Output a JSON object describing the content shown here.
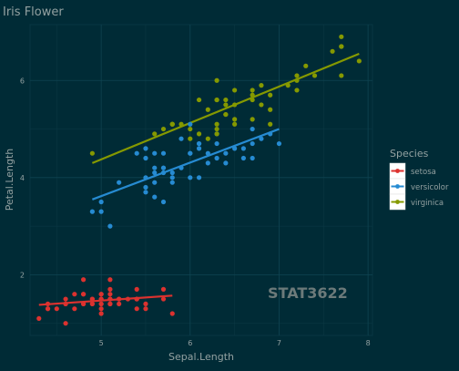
{
  "chart_data": {
    "type": "scatter",
    "title": "Iris Flower",
    "xlabel": "Sepal.Length",
    "ylabel": "Petal.Length",
    "xlim": [
      4.2,
      8.05
    ],
    "ylim": [
      0.75,
      7.15
    ],
    "x_ticks": [
      5,
      6,
      7,
      8
    ],
    "y_ticks": [
      2,
      4,
      6
    ],
    "grid": true,
    "legend": {
      "title": "Species",
      "position": "right"
    },
    "annotation": "STAT3622",
    "series": [
      {
        "name": "setosa",
        "color": "#dc322f",
        "points": [
          [
            4.3,
            1.1
          ],
          [
            4.4,
            1.3
          ],
          [
            4.4,
            1.4
          ],
          [
            4.4,
            1.3
          ],
          [
            4.5,
            1.3
          ],
          [
            4.6,
            1.4
          ],
          [
            4.6,
            1.5
          ],
          [
            4.6,
            1.0
          ],
          [
            4.6,
            1.4
          ],
          [
            4.7,
            1.3
          ],
          [
            4.7,
            1.6
          ],
          [
            4.8,
            1.6
          ],
          [
            4.8,
            1.4
          ],
          [
            4.8,
            1.9
          ],
          [
            4.8,
            1.4
          ],
          [
            4.8,
            1.6
          ],
          [
            4.9,
            1.4
          ],
          [
            4.9,
            1.5
          ],
          [
            4.9,
            1.4
          ],
          [
            4.9,
            1.5
          ],
          [
            5.0,
            1.4
          ],
          [
            5.0,
            1.5
          ],
          [
            5.0,
            1.2
          ],
          [
            5.0,
            1.3
          ],
          [
            5.0,
            1.6
          ],
          [
            5.0,
            1.4
          ],
          [
            5.0,
            1.6
          ],
          [
            5.0,
            1.5
          ],
          [
            5.1,
            1.4
          ],
          [
            5.1,
            1.5
          ],
          [
            5.1,
            1.5
          ],
          [
            5.1,
            1.7
          ],
          [
            5.1,
            1.5
          ],
          [
            5.1,
            1.9
          ],
          [
            5.1,
            1.6
          ],
          [
            5.1,
            1.4
          ],
          [
            5.2,
            1.5
          ],
          [
            5.2,
            1.4
          ],
          [
            5.2,
            1.5
          ],
          [
            5.3,
            1.5
          ],
          [
            5.4,
            1.7
          ],
          [
            5.4,
            1.5
          ],
          [
            5.4,
            1.3
          ],
          [
            5.4,
            1.5
          ],
          [
            5.4,
            1.5
          ],
          [
            5.5,
            1.3
          ],
          [
            5.5,
            1.4
          ],
          [
            5.7,
            1.5
          ],
          [
            5.7,
            1.7
          ],
          [
            5.8,
            1.2
          ]
        ],
        "fit": [
          [
            4.3,
            1.38
          ],
          [
            5.8,
            1.57
          ]
        ]
      },
      {
        "name": "versicolor",
        "color": "#268bd2",
        "points": [
          [
            4.9,
            3.3
          ],
          [
            5.0,
            3.5
          ],
          [
            5.0,
            3.3
          ],
          [
            5.1,
            3.0
          ],
          [
            5.2,
            3.9
          ],
          [
            5.4,
            4.5
          ],
          [
            5.5,
            4.0
          ],
          [
            5.5,
            4.6
          ],
          [
            5.5,
            3.8
          ],
          [
            5.5,
            3.7
          ],
          [
            5.5,
            4.4
          ],
          [
            5.6,
            3.9
          ],
          [
            5.6,
            4.5
          ],
          [
            5.6,
            4.2
          ],
          [
            5.6,
            4.1
          ],
          [
            5.6,
            3.6
          ],
          [
            5.7,
            4.5
          ],
          [
            5.7,
            3.5
          ],
          [
            5.7,
            4.2
          ],
          [
            5.7,
            4.2
          ],
          [
            5.7,
            4.1
          ],
          [
            5.8,
            4.1
          ],
          [
            5.8,
            4.0
          ],
          [
            5.8,
            3.9
          ],
          [
            5.9,
            4.2
          ],
          [
            5.9,
            4.8
          ],
          [
            6.0,
            4.5
          ],
          [
            6.0,
            4.5
          ],
          [
            6.0,
            5.1
          ],
          [
            6.0,
            4.0
          ],
          [
            6.1,
            4.7
          ],
          [
            6.1,
            4.0
          ],
          [
            6.1,
            4.7
          ],
          [
            6.1,
            4.6
          ],
          [
            6.2,
            4.3
          ],
          [
            6.2,
            4.5
          ],
          [
            6.3,
            4.7
          ],
          [
            6.3,
            4.9
          ],
          [
            6.3,
            4.4
          ],
          [
            6.4,
            4.5
          ],
          [
            6.4,
            4.3
          ],
          [
            6.5,
            4.6
          ],
          [
            6.6,
            4.6
          ],
          [
            6.6,
            4.4
          ],
          [
            6.7,
            4.4
          ],
          [
            6.7,
            5.0
          ],
          [
            6.7,
            4.7
          ],
          [
            6.8,
            4.8
          ],
          [
            6.9,
            4.9
          ],
          [
            7.0,
            4.7
          ]
        ],
        "fit": [
          [
            4.9,
            3.55
          ],
          [
            7.0,
            5.0
          ]
        ]
      },
      {
        "name": "virginica",
        "color": "#859900",
        "points": [
          [
            4.9,
            4.5
          ],
          [
            5.6,
            4.9
          ],
          [
            5.7,
            5.0
          ],
          [
            5.8,
            5.1
          ],
          [
            5.8,
            5.1
          ],
          [
            5.8,
            5.1
          ],
          [
            5.9,
            5.1
          ],
          [
            6.0,
            5.0
          ],
          [
            6.0,
            4.8
          ],
          [
            6.1,
            5.6
          ],
          [
            6.1,
            4.9
          ],
          [
            6.2,
            5.4
          ],
          [
            6.2,
            4.8
          ],
          [
            6.3,
            6.0
          ],
          [
            6.3,
            5.1
          ],
          [
            6.3,
            5.6
          ],
          [
            6.3,
            4.9
          ],
          [
            6.3,
            5.6
          ],
          [
            6.3,
            5.0
          ],
          [
            6.4,
            5.3
          ],
          [
            6.4,
            5.6
          ],
          [
            6.4,
            5.5
          ],
          [
            6.4,
            5.3
          ],
          [
            6.5,
            5.8
          ],
          [
            6.5,
            5.2
          ],
          [
            6.5,
            5.5
          ],
          [
            6.5,
            5.1
          ],
          [
            6.7,
            5.8
          ],
          [
            6.7,
            5.7
          ],
          [
            6.7,
            5.6
          ],
          [
            6.7,
            5.2
          ],
          [
            6.8,
            5.5
          ],
          [
            6.8,
            5.9
          ],
          [
            6.9,
            5.1
          ],
          [
            6.9,
            5.4
          ],
          [
            6.9,
            5.7
          ],
          [
            7.1,
            5.9
          ],
          [
            7.2,
            6.0
          ],
          [
            7.2,
            5.8
          ],
          [
            7.2,
            6.1
          ],
          [
            7.3,
            6.3
          ],
          [
            7.4,
            6.1
          ],
          [
            7.6,
            6.6
          ],
          [
            7.7,
            6.7
          ],
          [
            7.7,
            6.9
          ],
          [
            7.7,
            6.1
          ],
          [
            7.7,
            6.7
          ],
          [
            7.9,
            6.4
          ]
        ],
        "fit": [
          [
            4.9,
            4.3
          ],
          [
            7.9,
            6.55
          ]
        ]
      }
    ]
  }
}
